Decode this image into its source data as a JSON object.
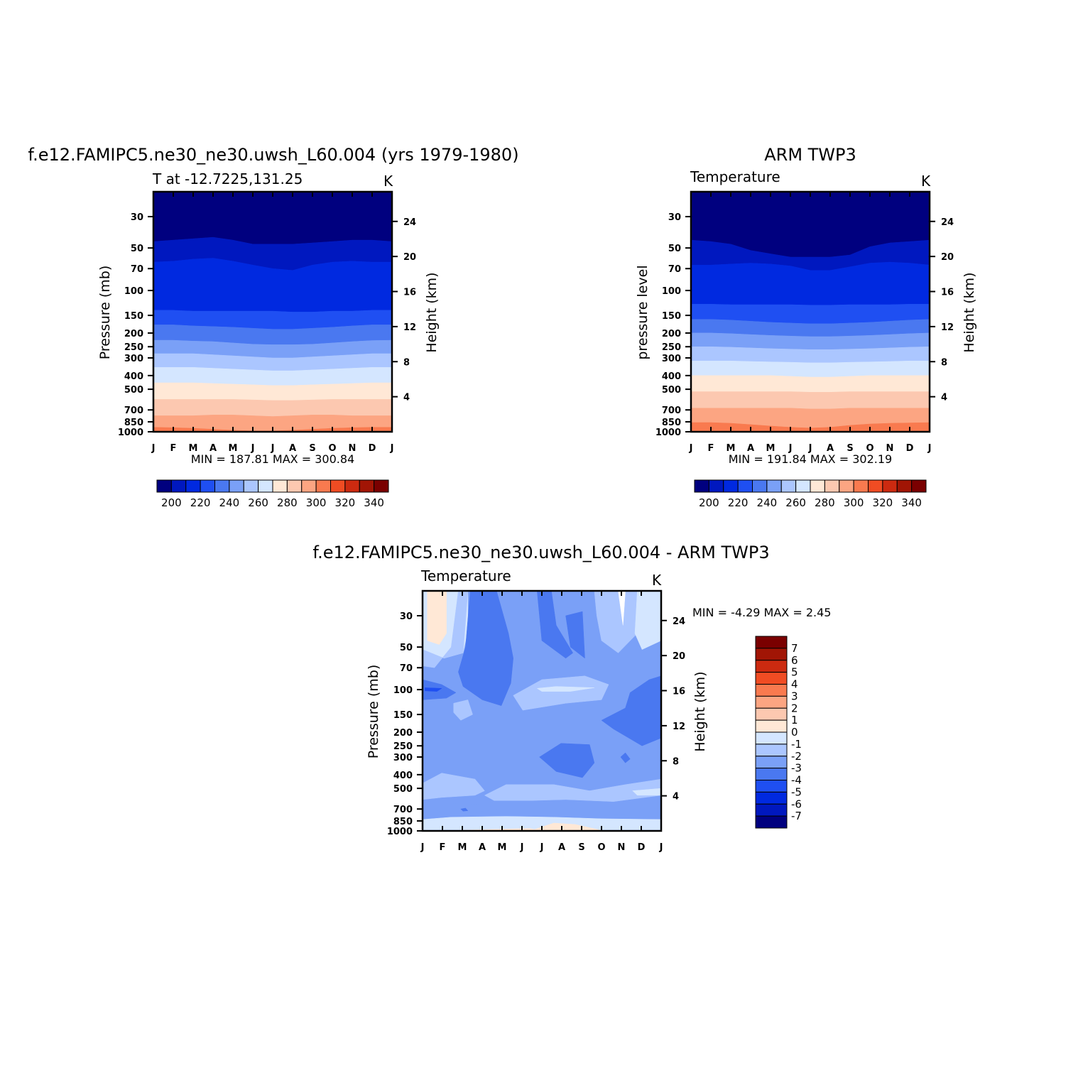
{
  "months": [
    "J",
    "F",
    "M",
    "A",
    "M",
    "J",
    "J",
    "A",
    "S",
    "O",
    "N",
    "D",
    "J"
  ],
  "pressure_ticks": [
    "30",
    "50",
    "70",
    "100",
    "150",
    "200",
    "250",
    "300",
    "400",
    "500",
    "700",
    "850",
    "1000"
  ],
  "height_ticks": [
    "24",
    "20",
    "16",
    "12",
    "8",
    "4"
  ],
  "panels": {
    "model": {
      "title": "f.e12.FAMIPC5.ne30_ne30.uwsh_L60.004 (yrs 1979-1980)",
      "subtitle": "T at -12.7225,131.25",
      "units": "K",
      "ylabel": "Pressure (mb)",
      "ylabel_right": "Height (km)",
      "stats": "MIN = 187.81 MAX = 300.84"
    },
    "obs": {
      "title": "ARM TWP3",
      "subtitle": "Temperature",
      "units": "K",
      "ylabel": "pressure level",
      "ylabel_right": "Height (km)",
      "stats": "MIN = 191.84 MAX = 302.19"
    },
    "diff": {
      "title": "f.e12.FAMIPC5.ne30_ne30.uwsh_L60.004 - ARM TWP3",
      "subtitle": "Temperature",
      "units": "K",
      "ylabel": "Pressure (mb)",
      "ylabel_right": "Height (km)",
      "stats": "MIN = -4.29 MAX = 2.45"
    }
  },
  "colorbar_abs": {
    "labels": [
      "200",
      "220",
      "240",
      "260",
      "280",
      "300",
      "320",
      "340"
    ],
    "colors": [
      "#00007f",
      "#0018bf",
      "#0029e0",
      "#1f4ff2",
      "#4a78f0",
      "#7aa0f7",
      "#abc6ff",
      "#d4e6ff",
      "#ffe8d6",
      "#fcc8b0",
      "#fca582",
      "#f97a4f",
      "#f04c23",
      "#cc2a10",
      "#a11505",
      "#7a0000"
    ]
  },
  "colorbar_diff": {
    "labels": [
      "7",
      "6",
      "5",
      "4",
      "3",
      "2",
      "1",
      "0",
      "-1",
      "-2",
      "-3",
      "-4",
      "-5",
      "-6",
      "-7"
    ],
    "colors": [
      "#7a0000",
      "#a11505",
      "#cc2a10",
      "#f04c23",
      "#f97a4f",
      "#fca582",
      "#fcc8b0",
      "#ffe8d6",
      "#d4e6ff",
      "#abc6ff",
      "#7aa0f7",
      "#4a78f0",
      "#1f4ff2",
      "#0029e0",
      "#0018bf",
      "#00007f"
    ]
  },
  "chart_data": [
    {
      "type": "heatmap",
      "title": "f.e12.FAMIPC5.ne30_ne30.uwsh_L60.004 (yrs 1979-1980)",
      "subtitle": "T at -12.7225,131.25",
      "units": "K",
      "xlabel": "",
      "ylabel": "Pressure (mb)",
      "ylabel_right": "Height (km)",
      "x": [
        "J",
        "F",
        "M",
        "A",
        "M",
        "J",
        "J",
        "A",
        "S",
        "O",
        "N",
        "D",
        "J"
      ],
      "y_scale": "log-pressure",
      "ylim": [
        1000,
        20
      ],
      "levels": [
        200,
        210,
        220,
        230,
        240,
        250,
        260,
        270,
        280,
        290,
        300,
        310,
        320,
        330,
        340
      ],
      "min": 187.81,
      "max": 300.84,
      "band_boundaries_pressure": [
        {
          "level": 290,
          "p": [
            930,
            935,
            945,
            960,
            975,
            985,
            985,
            975,
            960,
            945,
            935,
            930,
            930
          ]
        },
        {
          "level": 280,
          "p": [
            770,
            770,
            770,
            760,
            760,
            770,
            780,
            770,
            760,
            760,
            770,
            770,
            770
          ]
        },
        {
          "level": 270,
          "p": [
            590,
            590,
            590,
            590,
            590,
            595,
            600,
            600,
            595,
            590,
            590,
            590,
            590
          ]
        },
        {
          "level": 260,
          "p": [
            450,
            450,
            450,
            455,
            460,
            465,
            470,
            470,
            465,
            460,
            455,
            450,
            450
          ]
        },
        {
          "level": 250,
          "p": [
            350,
            350,
            350,
            355,
            360,
            365,
            370,
            370,
            365,
            360,
            355,
            350,
            350
          ]
        },
        {
          "level": 240,
          "p": [
            280,
            280,
            280,
            285,
            290,
            295,
            300,
            300,
            295,
            290,
            285,
            280,
            280
          ]
        },
        {
          "level": 230,
          "p": [
            225,
            225,
            228,
            230,
            235,
            240,
            242,
            242,
            240,
            235,
            230,
            226,
            225
          ]
        },
        {
          "level": 220,
          "p": [
            175,
            175,
            178,
            180,
            182,
            185,
            188,
            188,
            185,
            182,
            178,
            175,
            175
          ]
        },
        {
          "level": 210,
          "p": [
            138,
            138,
            140,
            140,
            140,
            140,
            140,
            142,
            142,
            140,
            140,
            138,
            138
          ]
        },
        {
          "level": 200,
          "p": [
            63,
            62,
            60,
            59,
            62,
            66,
            70,
            72,
            66,
            63,
            62,
            63,
            63
          ]
        },
        {
          "level": 190,
          "p": [
            45,
            44,
            43,
            42,
            44,
            47,
            47,
            47,
            46,
            45,
            44,
            44,
            45
          ]
        }
      ]
    },
    {
      "type": "heatmap",
      "title": "ARM TWP3",
      "subtitle": "Temperature",
      "units": "K",
      "xlabel": "",
      "ylabel": "pressure level",
      "ylabel_right": "Height (km)",
      "x": [
        "J",
        "F",
        "M",
        "A",
        "M",
        "J",
        "J",
        "A",
        "S",
        "O",
        "N",
        "D",
        "J"
      ],
      "y_scale": "log-pressure",
      "ylim": [
        1000,
        20
      ],
      "levels": [
        200,
        210,
        220,
        230,
        240,
        250,
        260,
        270,
        280,
        290,
        300,
        310,
        320,
        330,
        340
      ],
      "min": 191.84,
      "max": 302.19,
      "band_boundaries_pressure": [
        {
          "level": 290,
          "p": [
            860,
            860,
            870,
            890,
            910,
            930,
            940,
            930,
            900,
            880,
            870,
            865,
            860
          ]
        },
        {
          "level": 280,
          "p": [
            680,
            680,
            680,
            680,
            680,
            680,
            690,
            690,
            680,
            680,
            680,
            680,
            680
          ]
        },
        {
          "level": 270,
          "p": [
            520,
            520,
            520,
            520,
            520,
            520,
            525,
            525,
            520,
            520,
            520,
            520,
            520
          ]
        },
        {
          "level": 260,
          "p": [
            400,
            400,
            400,
            400,
            400,
            405,
            410,
            410,
            405,
            400,
            400,
            400,
            400
          ]
        },
        {
          "level": 250,
          "p": [
            315,
            315,
            315,
            318,
            320,
            322,
            325,
            325,
            322,
            320,
            318,
            315,
            315
          ]
        },
        {
          "level": 240,
          "p": [
            250,
            250,
            252,
            255,
            258,
            260,
            262,
            262,
            260,
            258,
            255,
            252,
            250
          ]
        },
        {
          "level": 230,
          "p": [
            200,
            200,
            202,
            205,
            208,
            210,
            212,
            212,
            210,
            208,
            205,
            202,
            200
          ]
        },
        {
          "level": 220,
          "p": [
            160,
            160,
            162,
            165,
            168,
            170,
            172,
            172,
            170,
            168,
            165,
            162,
            160
          ]
        },
        {
          "level": 210,
          "p": [
            125,
            125,
            126,
            126,
            126,
            126,
            127,
            127,
            126,
            126,
            126,
            125,
            125
          ]
        },
        {
          "level": 200,
          "p": [
            66,
            66,
            65,
            64,
            65,
            67,
            72,
            72,
            68,
            64,
            63,
            64,
            66
          ]
        },
        {
          "level": 190,
          "p": [
            44,
            45,
            47,
            52,
            55,
            58,
            58,
            58,
            56,
            49,
            46,
            45,
            44
          ]
        }
      ]
    },
    {
      "type": "heatmap",
      "title": "f.e12.FAMIPC5.ne30_ne30.uwsh_L60.004 - ARM TWP3",
      "subtitle": "Temperature",
      "units": "K",
      "xlabel": "",
      "ylabel": "Pressure (mb)",
      "ylabel_right": "Height (km)",
      "x": [
        "J",
        "F",
        "M",
        "A",
        "M",
        "J",
        "J",
        "A",
        "S",
        "O",
        "N",
        "D",
        "J"
      ],
      "y_scale": "log-pressure",
      "ylim": [
        1000,
        20
      ],
      "levels": [
        -7,
        -6,
        -5,
        -4,
        -3,
        -2,
        -1,
        0,
        1,
        2,
        3,
        4,
        5,
        6,
        7
      ],
      "min": -4.29,
      "max": 2.45,
      "dominant_range": [
        -3,
        -1
      ],
      "features": [
        {
          "value_range": [
            0,
            1
          ],
          "region": "near 30-50 mb, Jan-Feb"
        },
        {
          "value_range": [
            -4,
            -3
          ],
          "region": "near 30-100 mb, Mar-Apr and Jun-Aug"
        },
        {
          "value_range": [
            -1,
            0
          ],
          "region": "near 100 mb, Jun-Sep"
        },
        {
          "value_range": [
            -4,
            -3
          ],
          "region": "near 100-200 mb, Nov-Dec"
        },
        {
          "value_range": [
            -4,
            -3
          ],
          "region": "near 250-400 mb, Jul-Sep"
        },
        {
          "value_range": [
            -2,
            -1
          ],
          "region": "near 400-700 mb, Jan-Dec"
        },
        {
          "value_range": [
            0,
            1
          ],
          "region": "near 1000 mb, Jul-Oct"
        }
      ]
    }
  ]
}
